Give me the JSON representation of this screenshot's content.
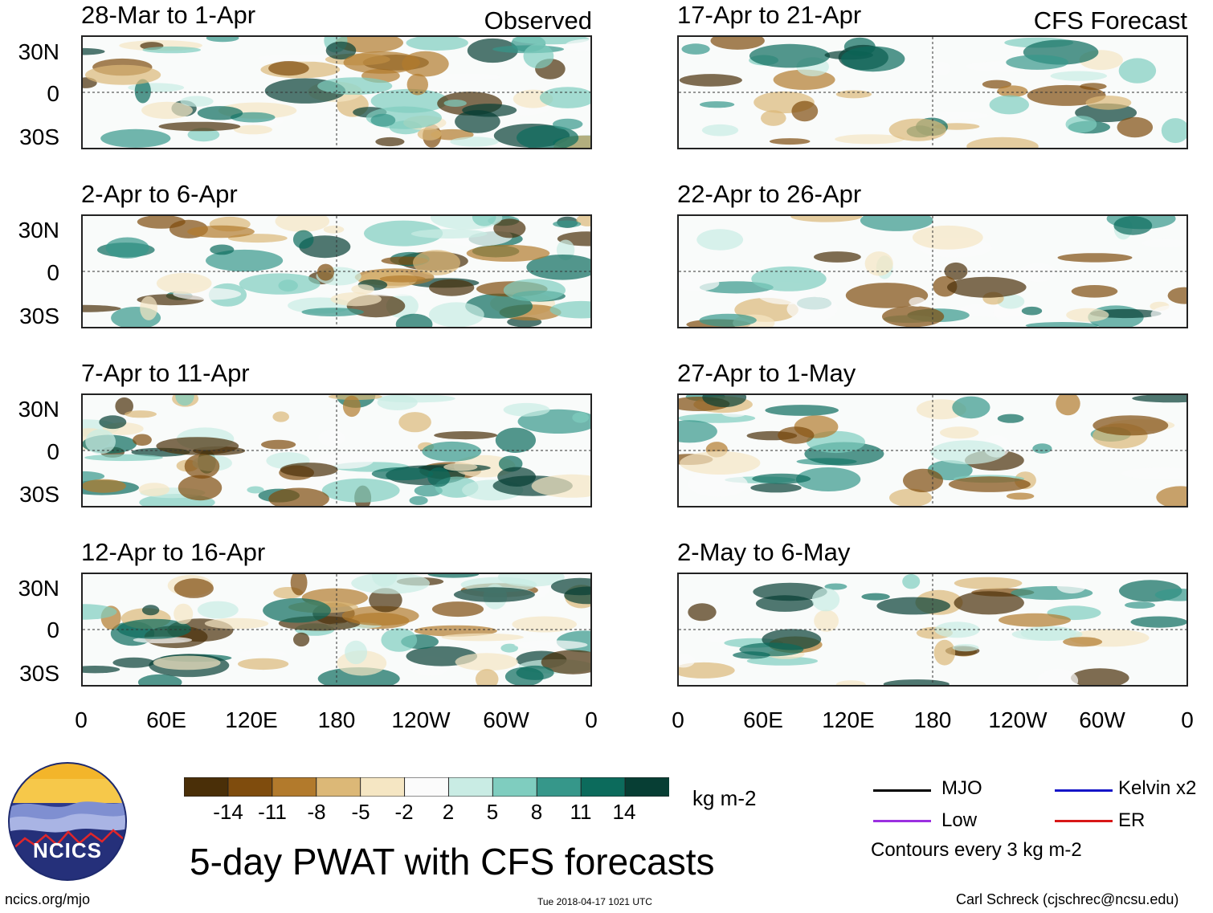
{
  "columns": {
    "observed_label": "Observed",
    "forecast_label": "CFS Forecast"
  },
  "panels": [
    {
      "title": "28-Mar to 1-Apr",
      "type": "observed"
    },
    {
      "title": "2-Apr to 6-Apr",
      "type": "observed"
    },
    {
      "title": "7-Apr to 11-Apr",
      "type": "observed"
    },
    {
      "title": "12-Apr to 16-Apr",
      "type": "observed"
    },
    {
      "title": "17-Apr to 21-Apr",
      "type": "forecast"
    },
    {
      "title": "22-Apr to 26-Apr",
      "type": "forecast"
    },
    {
      "title": "27-Apr to 1-May",
      "type": "forecast"
    },
    {
      "title": "2-May to 6-May",
      "type": "forecast"
    }
  ],
  "axes": {
    "lat_labels": [
      "30N",
      "0",
      "30S"
    ],
    "lon_labels": [
      "0",
      "60E",
      "120E",
      "180",
      "120W",
      "60W",
      "0"
    ]
  },
  "colorbar": {
    "ticks": [
      "-14",
      "-11",
      "-8",
      "-5",
      "-2",
      "2",
      "5",
      "8",
      "11",
      "14"
    ],
    "colors": [
      "#4a2f08",
      "#7f4c0d",
      "#b27a2c",
      "#dcb877",
      "#f5e6c3",
      "#fbfbfb",
      "#c9ece4",
      "#7fcdbf",
      "#36978a",
      "#0c6b5c",
      "#073e34"
    ],
    "units": "kg m-2"
  },
  "legend": {
    "items": [
      {
        "label": "MJO",
        "color": "#000000"
      },
      {
        "label": "Kelvin x2",
        "color": "#1515c8"
      },
      {
        "label": "Low",
        "color": "#9b30e0"
      },
      {
        "label": "ER",
        "color": "#d81818"
      }
    ],
    "contour_note": "Contours every 3 kg m-2"
  },
  "logo": {
    "text": "NCICS"
  },
  "main_title": "5-day PWAT with CFS forecasts",
  "footer": {
    "left": "ncics.org/mjo",
    "center": "Tue 2018-04-17 1021 UTC",
    "right": "Carl Schreck (cjschrec@ncsu.edu)"
  }
}
